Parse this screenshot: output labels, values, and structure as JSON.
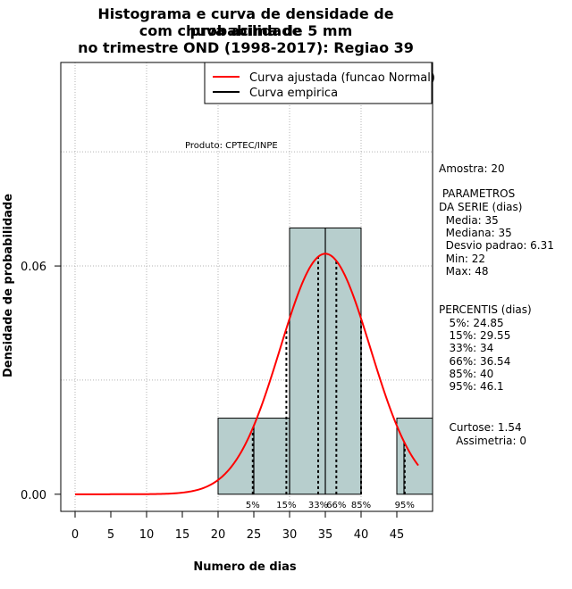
{
  "chart_data": {
    "type": "bar",
    "title": [
      "Histograma e curva de densidade de probabilidade",
      "com chuva acima de 5 mm",
      "no trimestre OND (1998-2017): Regiao 39"
    ],
    "xlabel": "Numero de dias",
    "ylabel": "Densidade de probabilidade",
    "xlim": [
      -2,
      50
    ],
    "ylim": [
      -0.0045,
      0.1135
    ],
    "x_ticks": [
      0,
      5,
      10,
      15,
      20,
      25,
      30,
      35,
      40,
      45
    ],
    "y_ticks": [
      0.0,
      0.06
    ],
    "y_tick_labels": [
      "0.00",
      "0.06"
    ],
    "grid_x": [
      0,
      10,
      20,
      30,
      40
    ],
    "grid_y": [
      0.03,
      0.06,
      0.09
    ],
    "histogram": {
      "bins": [
        [
          20,
          30
        ],
        [
          30,
          40
        ],
        [
          45,
          50
        ]
      ],
      "values": [
        0.02,
        0.07,
        0.02
      ],
      "fill": "#b7cecd"
    },
    "empirical_lines_x": [
      25,
      30,
      35,
      40,
      46
    ],
    "normal_curve": {
      "mean": 35,
      "sd": 6.31,
      "x_range": [
        0,
        48
      ],
      "color": "#ff0000"
    },
    "percentile_markers": [
      {
        "x": 24.85,
        "label": "5%"
      },
      {
        "x": 29.55,
        "label": "15%"
      },
      {
        "x": 34,
        "label": "33%"
      },
      {
        "x": 36.54,
        "label": "66%"
      },
      {
        "x": 40,
        "label": "85%"
      },
      {
        "x": 46.1,
        "label": "95%"
      }
    ],
    "legend": [
      {
        "label": "Curva ajustada (funcao Normal)",
        "color": "#ff0000"
      },
      {
        "label": "Curva empirica",
        "color": "#000000"
      }
    ],
    "legend_position": "top-right",
    "annotation": "Produto: CPTEC/INPE"
  },
  "stats": {
    "amostra": "Amostra: 20",
    "param_title": " PARAMETROS",
    "param_sub": "DA SERIE (dias)",
    "media": "  Media: 35",
    "mediana": "  Mediana: 35",
    "desvio": "  Desvio padrao: 6.31",
    "min": "  Min: 22",
    "max": "  Max: 48",
    "perc_title": "PERCENTIS (dias)",
    "p5": "   5%: 24.85",
    "p15": "   15%: 29.55",
    "p33": "   33%: 34",
    "p66": "   66%: 36.54",
    "p85": "   85%: 40",
    "p95": "   95%: 46.1",
    "curtose": "   Curtose: 1.54",
    "assimetria": "     Assimetria: 0"
  }
}
